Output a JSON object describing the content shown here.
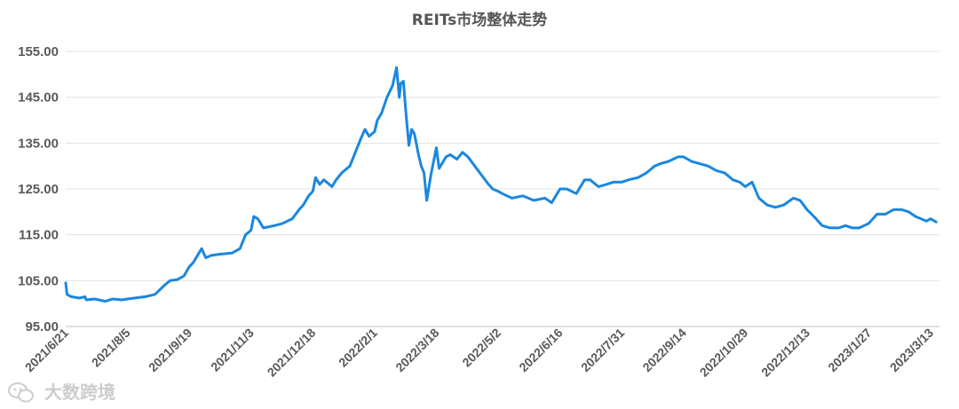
{
  "chart_data": {
    "type": "line",
    "title": "REITs市场整体走势",
    "xlabel": "",
    "ylabel": "",
    "ylim": [
      95,
      155
    ],
    "yticks": [
      "155.00",
      "145.00",
      "135.00",
      "125.00",
      "115.00",
      "105.00",
      "95.00"
    ],
    "xticks": [
      "2021/6/21",
      "2021/8/5",
      "2021/9/19",
      "2021/11/3",
      "2021/12/18",
      "2022/2/1",
      "2022/3/18",
      "2022/5/2",
      "2022/6/16",
      "2022/7/31",
      "2022/9/14",
      "2022/10/29",
      "2022/12/13",
      "2023/1/27",
      "2023/3/13"
    ],
    "grid": "horizontal",
    "line_color": "#1a87e0",
    "series": [
      {
        "x": [
          "2021/6/21",
          "2021/6/22",
          "2021/6/25",
          "2021/7/1",
          "2021/7/5",
          "2021/7/6",
          "2021/7/12",
          "2021/7/20",
          "2021/7/25",
          "2021/8/1",
          "2021/8/5",
          "2021/8/10",
          "2021/8/18",
          "2021/8/25",
          "2021/9/1",
          "2021/9/5",
          "2021/9/10",
          "2021/9/15",
          "2021/9/19",
          "2021/9/22",
          "2021/9/26",
          "2021/9/28",
          "2021/10/1",
          "2021/10/5",
          "2021/10/12",
          "2021/10/20",
          "2021/10/26",
          "2021/10/30",
          "2021/11/3",
          "2021/11/5",
          "2021/11/8",
          "2021/11/12",
          "2021/11/20",
          "2021/11/26",
          "2021/12/3",
          "2021/12/8",
          "2021/12/11",
          "2021/12/15",
          "2021/12/18",
          "2021/12/20",
          "2021/12/23",
          "2021/12/26",
          "2022/1/1",
          "2022/1/4",
          "2022/1/8",
          "2022/1/14",
          "2022/1/18",
          "2022/1/22",
          "2022/1/25",
          "2022/1/28",
          "2022/2/1",
          "2022/2/3",
          "2022/2/6",
          "2022/2/10",
          "2022/2/14",
          "2022/2/17",
          "2022/2/19",
          "2022/2/20",
          "2022/2/22",
          "2022/2/24",
          "2022/2/26",
          "2022/2/28",
          "2022/3/2",
          "2022/3/5",
          "2022/3/7",
          "2022/3/9",
          "2022/3/11",
          "2022/3/14",
          "2022/3/16",
          "2022/3/18",
          "2022/3/20",
          "2022/3/23",
          "2022/3/25",
          "2022/3/28",
          "2022/4/2",
          "2022/4/6",
          "2022/4/10",
          "2022/4/15",
          "2022/4/20",
          "2022/4/25",
          "2022/4/28",
          "2022/5/2",
          "2022/5/5",
          "2022/5/12",
          "2022/5/20",
          "2022/5/28",
          "2022/6/5",
          "2022/6/10",
          "2022/6/16",
          "2022/6/21",
          "2022/6/28",
          "2022/7/4",
          "2022/7/8",
          "2022/7/14",
          "2022/7/20",
          "2022/7/25",
          "2022/7/31",
          "2022/8/5",
          "2022/8/12",
          "2022/8/18",
          "2022/8/24",
          "2022/8/28",
          "2022/9/3",
          "2022/9/10",
          "2022/9/14",
          "2022/9/20",
          "2022/9/26",
          "2022/10/2",
          "2022/10/8",
          "2022/10/14",
          "2022/10/20",
          "2022/10/25",
          "2022/10/29",
          "2022/11/3",
          "2022/11/8",
          "2022/11/14",
          "2022/11/20",
          "2022/11/26",
          "2022/12/3",
          "2022/12/8",
          "2022/12/13",
          "2022/12/18",
          "2022/12/24",
          "2022/12/30",
          "2023/1/5",
          "2023/1/10",
          "2023/1/15",
          "2023/1/20",
          "2023/1/27",
          "2023/2/2",
          "2023/2/8",
          "2023/2/14",
          "2023/2/20",
          "2023/2/25",
          "2023/3/2",
          "2023/3/6",
          "2023/3/10",
          "2023/3/13",
          "2023/3/17"
        ],
        "values": [
          104.5,
          102.0,
          101.5,
          101.2,
          101.5,
          100.8,
          101.0,
          100.5,
          101.0,
          100.8,
          101.0,
          101.2,
          101.5,
          102.0,
          104.0,
          105.0,
          105.2,
          106.0,
          108.0,
          109.0,
          111.0,
          112.0,
          110.0,
          110.5,
          110.8,
          111.0,
          112.0,
          115.0,
          116.0,
          119.0,
          118.5,
          116.5,
          117.0,
          117.5,
          118.5,
          120.5,
          121.5,
          123.5,
          124.5,
          127.5,
          126.0,
          127.0,
          125.5,
          127.0,
          128.5,
          130.0,
          133.0,
          136.0,
          138.0,
          136.5,
          137.5,
          140.0,
          141.5,
          145.0,
          147.5,
          151.5,
          145.0,
          148.0,
          148.5,
          141.0,
          134.5,
          138.0,
          137.0,
          132.5,
          130.0,
          128.5,
          122.5,
          128.0,
          131.0,
          134.0,
          129.5,
          131.0,
          132.0,
          132.5,
          131.5,
          133.0,
          132.0,
          130.0,
          128.0,
          126.0,
          125.0,
          124.5,
          124.0,
          123.0,
          123.5,
          122.5,
          123.0,
          122.0,
          125.0,
          125.0,
          124.0,
          127.0,
          127.0,
          125.5,
          126.0,
          126.5,
          126.5,
          127.0,
          127.5,
          128.5,
          130.0,
          130.5,
          131.0,
          132.0,
          132.0,
          131.0,
          130.5,
          130.0,
          129.0,
          128.5,
          127.0,
          126.5,
          125.5,
          126.5,
          123.0,
          121.5,
          121.0,
          121.5,
          123.0,
          122.5,
          120.5,
          119.0,
          117.0,
          116.5,
          116.5,
          117.0,
          116.5,
          116.5,
          117.5,
          119.5,
          119.5,
          120.5,
          120.5,
          120.0,
          119.0,
          118.5,
          118.0,
          118.5,
          117.8
        ]
      }
    ]
  },
  "watermark": "大数跨境",
  "watermark_icon": "wechat-logo-icon"
}
